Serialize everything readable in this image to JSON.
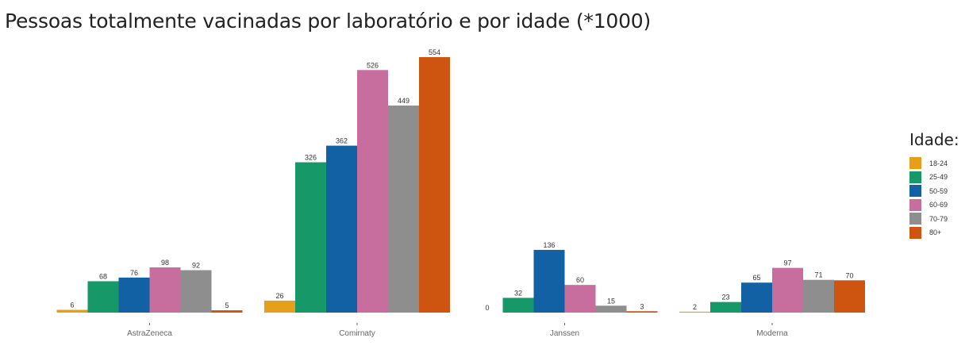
{
  "chart_data": {
    "type": "bar",
    "title": "Pessoas totalmente vacinadas por laboratório e por idade (*1000)",
    "xlabel": "",
    "ylabel": "",
    "categories": [
      "AstraZeneca",
      "Comirnaty",
      "Janssen",
      "Moderna"
    ],
    "legend_title": "Idade:",
    "legend_position": "right",
    "grid": false,
    "ylim": [
      0,
      554
    ],
    "series": [
      {
        "name": "18-24",
        "color": "#E69F1A",
        "values": [
          6,
          26,
          0,
          2
        ]
      },
      {
        "name": "25-49",
        "color": "#169868",
        "values": [
          68,
          326,
          32,
          23
        ]
      },
      {
        "name": "50-59",
        "color": "#1261A4",
        "values": [
          76,
          362,
          136,
          65
        ]
      },
      {
        "name": "60-69",
        "color": "#C86E9F",
        "values": [
          98,
          526,
          60,
          97
        ]
      },
      {
        "name": "70-79",
        "color": "#8E8E8E",
        "values": [
          92,
          449,
          15,
          71
        ]
      },
      {
        "name": "80+",
        "color": "#CD5510",
        "values": [
          5,
          554,
          3,
          70
        ]
      }
    ]
  }
}
